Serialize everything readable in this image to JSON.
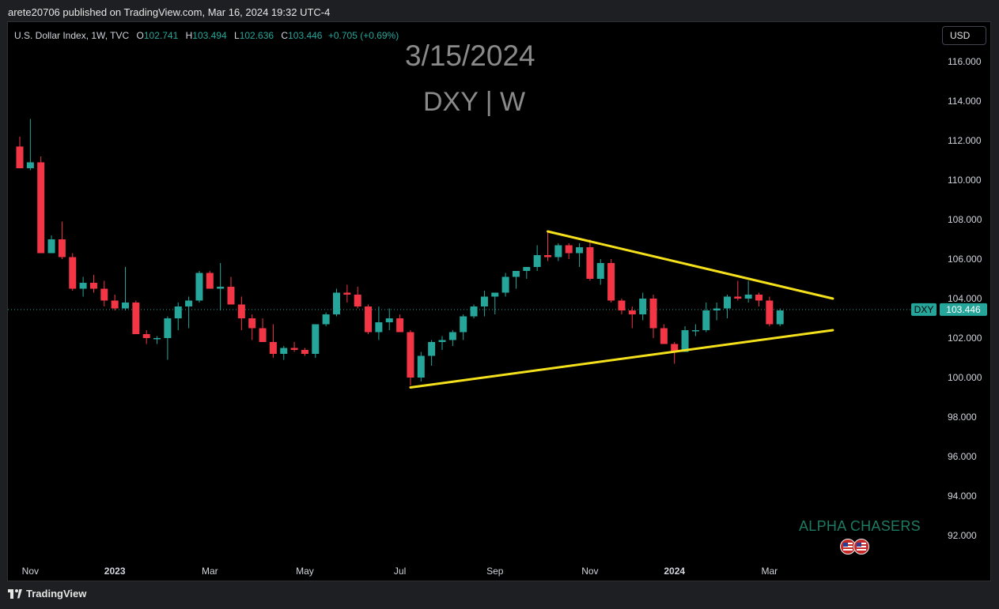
{
  "header": {
    "published": "arete20706 published on TradingView.com, Mar 16, 2024 19:32 UTC-4"
  },
  "legend": {
    "title": "U.S. Dollar Index, 1W, TVC",
    "o_label": "O",
    "o": "102.741",
    "h_label": "H",
    "h": "103.494",
    "l_label": "L",
    "l": "102.636",
    "c_label": "C",
    "c": "103.446",
    "change": "+0.705 (+0.69%)"
  },
  "currency_button": "USD",
  "watermark": {
    "date": "3/15/2024",
    "symbol": "DXY | W"
  },
  "branding": {
    "alpha": "ALPHA CHASERS"
  },
  "footer": {
    "brand": "TradingView"
  },
  "colors": {
    "up": "#26a69a",
    "down": "#f23645",
    "trendline": "#f5e11b",
    "background": "#000000"
  },
  "chart_data": {
    "type": "candlestick",
    "symbol": "DXY",
    "last_price": "103.446",
    "ylim": [
      90.0,
      117.0
    ],
    "y_ticks": [
      "116.000",
      "114.000",
      "112.000",
      "110.000",
      "108.000",
      "106.000",
      "104.000",
      "102.000",
      "100.000",
      "98.000",
      "96.000",
      "94.000",
      "92.000"
    ],
    "x_ticks": [
      {
        "label": "Nov",
        "i": 1
      },
      {
        "label": "2023",
        "i": 9
      },
      {
        "label": "Mar",
        "i": 18
      },
      {
        "label": "May",
        "i": 27
      },
      {
        "label": "Jul",
        "i": 36
      },
      {
        "label": "Sep",
        "i": 45
      },
      {
        "label": "Nov",
        "i": 54
      },
      {
        "label": "2024",
        "i": 62
      },
      {
        "label": "Mar",
        "i": 71
      }
    ],
    "candles": [
      [
        111.7,
        112.2,
        110.6,
        110.6
      ],
      [
        110.6,
        113.1,
        110.5,
        110.9
      ],
      [
        110.9,
        111.2,
        106.3,
        106.3
      ],
      [
        106.3,
        107.2,
        106.3,
        107.0
      ],
      [
        107.0,
        107.9,
        106.0,
        106.1
      ],
      [
        106.1,
        106.3,
        104.4,
        104.5
      ],
      [
        104.5,
        105.1,
        104.1,
        104.8
      ],
      [
        104.8,
        105.2,
        104.3,
        104.5
      ],
      [
        104.5,
        104.9,
        103.6,
        103.9
      ],
      [
        103.9,
        104.2,
        103.4,
        103.5
      ],
      [
        103.5,
        105.6,
        103.4,
        103.8
      ],
      [
        103.8,
        103.9,
        102.2,
        102.2
      ],
      [
        102.2,
        102.4,
        101.7,
        102.0
      ],
      [
        102.0,
        102.1,
        101.7,
        102.0
      ],
      [
        102.0,
        103.1,
        100.9,
        103.0
      ],
      [
        103.0,
        103.8,
        102.4,
        103.6
      ],
      [
        103.6,
        104.1,
        102.5,
        103.9
      ],
      [
        103.9,
        105.4,
        103.8,
        105.3
      ],
      [
        105.3,
        105.4,
        104.6,
        104.5
      ],
      [
        104.5,
        105.8,
        103.4,
        104.6
      ],
      [
        104.6,
        105.1,
        103.7,
        103.7
      ],
      [
        103.7,
        104.1,
        102.4,
        103.0
      ],
      [
        103.0,
        103.2,
        101.9,
        102.5
      ],
      [
        102.5,
        103.0,
        101.8,
        101.8
      ],
      [
        101.8,
        102.7,
        101.0,
        101.2
      ],
      [
        101.2,
        101.6,
        100.9,
        101.5
      ],
      [
        101.5,
        101.8,
        101.3,
        101.4
      ],
      [
        101.4,
        101.5,
        101.1,
        101.2
      ],
      [
        101.2,
        102.7,
        101.0,
        102.7
      ],
      [
        102.7,
        103.3,
        102.6,
        103.2
      ],
      [
        103.2,
        104.5,
        103.1,
        104.3
      ],
      [
        104.3,
        104.7,
        103.8,
        104.2
      ],
      [
        104.2,
        104.6,
        103.5,
        103.6
      ],
      [
        103.6,
        103.7,
        102.2,
        102.3
      ],
      [
        102.3,
        103.6,
        101.9,
        102.8
      ],
      [
        102.8,
        103.5,
        102.4,
        103.0
      ],
      [
        103.0,
        103.2,
        102.3,
        102.3
      ],
      [
        102.3,
        102.4,
        99.6,
        100.0
      ],
      [
        100.0,
        101.3,
        99.8,
        101.1
      ],
      [
        101.1,
        101.9,
        100.6,
        101.8
      ],
      [
        101.8,
        102.1,
        101.4,
        101.9
      ],
      [
        101.9,
        102.4,
        101.6,
        102.3
      ],
      [
        102.3,
        103.2,
        101.9,
        103.1
      ],
      [
        103.1,
        103.7,
        103.0,
        103.6
      ],
      [
        103.6,
        104.4,
        103.1,
        104.1
      ],
      [
        104.1,
        104.3,
        103.2,
        104.3
      ],
      [
        104.3,
        105.3,
        104.1,
        105.1
      ],
      [
        105.1,
        105.4,
        104.5,
        105.4
      ],
      [
        105.4,
        105.6,
        105.0,
        105.6
      ],
      [
        105.6,
        106.7,
        105.4,
        106.2
      ],
      [
        106.2,
        107.4,
        105.9,
        106.1
      ],
      [
        106.1,
        106.8,
        105.9,
        106.7
      ],
      [
        106.7,
        106.8,
        106.0,
        106.3
      ],
      [
        106.3,
        106.8,
        105.6,
        106.6
      ],
      [
        106.6,
        107.0,
        104.9,
        105.0
      ],
      [
        105.0,
        106.0,
        104.7,
        105.8
      ],
      [
        105.8,
        106.0,
        103.8,
        103.9
      ],
      [
        103.9,
        104.0,
        103.2,
        103.4
      ],
      [
        103.4,
        103.6,
        102.5,
        103.2
      ],
      [
        103.2,
        104.3,
        102.9,
        104.0
      ],
      [
        104.0,
        104.2,
        102.0,
        102.5
      ],
      [
        102.5,
        102.7,
        101.7,
        101.7
      ],
      [
        101.7,
        101.8,
        100.7,
        101.3
      ],
      [
        101.3,
        102.6,
        101.3,
        102.4
      ],
      [
        102.4,
        102.7,
        102.1,
        102.4
      ],
      [
        102.4,
        103.8,
        102.3,
        103.4
      ],
      [
        103.4,
        103.8,
        102.9,
        103.5
      ],
      [
        103.5,
        104.2,
        103.0,
        104.1
      ],
      [
        104.1,
        104.9,
        103.9,
        104.0
      ],
      [
        104.0,
        104.9,
        103.8,
        104.2
      ],
      [
        104.2,
        104.3,
        103.6,
        103.9
      ],
      [
        103.9,
        104.1,
        102.6,
        102.7
      ],
      [
        102.7,
        103.5,
        102.6,
        103.4
      ]
    ],
    "trendlines": [
      {
        "name": "upper",
        "from": {
          "i": 50,
          "y": 107.4
        },
        "to": {
          "i": 77,
          "y": 104.0
        }
      },
      {
        "name": "lower",
        "from": {
          "i": 37,
          "y": 99.5
        },
        "to": {
          "i": 77,
          "y": 102.4
        }
      }
    ]
  }
}
